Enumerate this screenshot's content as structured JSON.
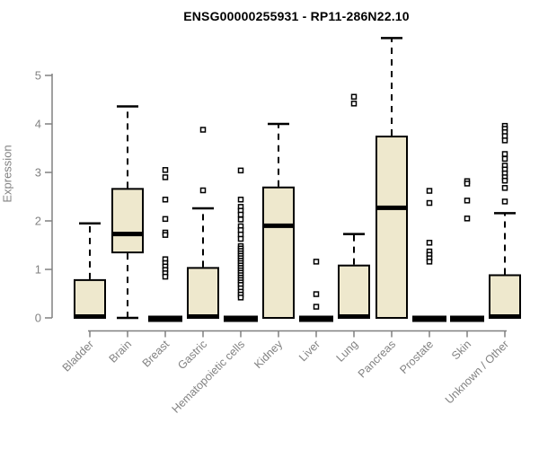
{
  "title": "ENSG00000255931 - RP11-286N22.10",
  "colors": {
    "background": "#FFFFFF",
    "box_fill": "#EEE8CD",
    "box_border": "#000000",
    "median": "#000000",
    "whisker": "#000000",
    "outlier_border": "#000000",
    "outlier_fill": "#FFFFFF",
    "axis": "#808080",
    "tick_label": "#828282",
    "title_color": "#000000"
  },
  "chart_data": {
    "type": "boxplot",
    "title": "ENSG00000255931 - RP11-286N22.10",
    "ylabel": "Expression",
    "xlabel": "",
    "ylim": [
      0,
      5.8
    ],
    "yticks": [
      0,
      1,
      2,
      3,
      4,
      5
    ],
    "grid": false,
    "legend": false,
    "categories": [
      "Bladder",
      "Brain",
      "Breast",
      "Gastric",
      "Hematopoietic cells",
      "Kidney",
      "Liver",
      "Lung",
      "Pancreas",
      "Prostate",
      "Skin",
      "Unknown / Other"
    ],
    "boxes": [
      {
        "category": "Bladder",
        "low": 0,
        "q1": 0,
        "median": 0.02,
        "q3": 0.78,
        "high": 1.95,
        "outliers": []
      },
      {
        "category": "Brain",
        "low": 0,
        "q1": 1.35,
        "median": 1.73,
        "q3": 2.66,
        "high": 4.36,
        "outliers": []
      },
      {
        "category": "Breast",
        "low": 0,
        "q1": 0,
        "median": 0,
        "q3": 0,
        "high": 0,
        "outliers": [
          3.05,
          2.9,
          2.44,
          2.04,
          1.76,
          1.71,
          1.21,
          1.13,
          1.06,
          0.99,
          0.92,
          0.85
        ]
      },
      {
        "category": "Gastric",
        "low": 0,
        "q1": 0,
        "median": 0.02,
        "q3": 1.03,
        "high": 2.26,
        "outliers": [
          3.88,
          2.63
        ]
      },
      {
        "category": "Hematopoietic cells",
        "low": 0,
        "q1": 0,
        "median": 0,
        "q3": 0,
        "high": 0,
        "outliers": [
          3.04,
          2.44,
          2.29,
          2.21,
          2.13,
          2.03,
          1.89,
          1.81,
          1.72,
          1.63,
          1.48,
          1.43,
          1.38,
          1.33,
          1.28,
          1.23,
          1.18,
          1.13,
          1.08,
          1.03,
          0.98,
          0.93,
          0.88,
          0.83,
          0.78,
          0.73,
          0.68,
          0.61,
          0.54,
          0.48,
          0.42
        ]
      },
      {
        "category": "Kidney",
        "low": 0,
        "q1": 0,
        "median": 1.9,
        "q3": 2.69,
        "high": 4.0,
        "outliers": []
      },
      {
        "category": "Liver",
        "low": 0,
        "q1": 0,
        "median": 0,
        "q3": 0,
        "high": 0,
        "outliers": [
          1.16,
          0.49,
          0.23
        ]
      },
      {
        "category": "Lung",
        "low": 0,
        "q1": 0,
        "median": 0.02,
        "q3": 1.08,
        "high": 1.73,
        "outliers": [
          4.56,
          4.42
        ]
      },
      {
        "category": "Pancreas",
        "low": 0,
        "q1": 0,
        "median": 2.27,
        "q3": 3.74,
        "high": 5.77,
        "outliers": []
      },
      {
        "category": "Prostate",
        "low": 0,
        "q1": 0,
        "median": 0,
        "q3": 0,
        "high": 0,
        "outliers": [
          2.62,
          2.37,
          1.55,
          1.37,
          1.3,
          1.23,
          1.16
        ]
      },
      {
        "category": "Skin",
        "low": 0,
        "q1": 0,
        "median": 0,
        "q3": 0,
        "high": 0,
        "outliers": [
          2.82,
          2.77,
          2.42,
          2.05
        ]
      },
      {
        "category": "Unknown / Other",
        "low": 0,
        "q1": 0,
        "median": 0.02,
        "q3": 0.88,
        "high": 2.16,
        "outliers": [
          3.96,
          3.9,
          3.83,
          3.75,
          3.66,
          3.38,
          3.28,
          3.14,
          3.06,
          2.98,
          2.9,
          2.83,
          2.68,
          2.4
        ]
      }
    ]
  }
}
